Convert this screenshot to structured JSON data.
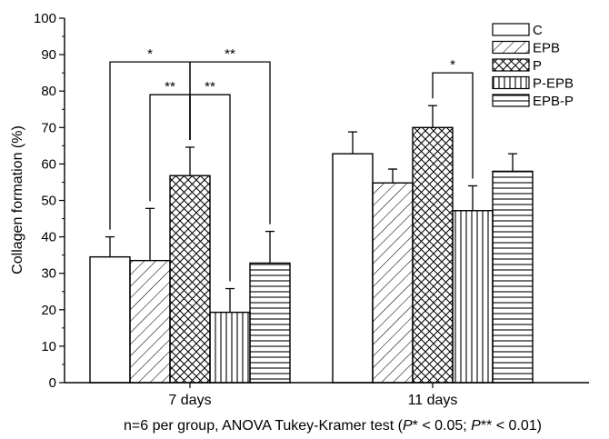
{
  "chart_data": {
    "type": "bar",
    "categories": [
      "7 days",
      "11 days"
    ],
    "series": [
      {
        "name": "C",
        "pattern": "none",
        "values": [
          34.5,
          62.8
        ],
        "errors": [
          5.5,
          6.0
        ]
      },
      {
        "name": "EPB",
        "pattern": "diagonal",
        "values": [
          33.5,
          54.8
        ],
        "errors": [
          14.3,
          3.8
        ]
      },
      {
        "name": "P",
        "pattern": "crosshatch",
        "values": [
          56.8,
          70.0
        ],
        "errors": [
          7.8,
          6.0
        ]
      },
      {
        "name": "P-EPB",
        "pattern": "vertical",
        "values": [
          19.3,
          47.2
        ],
        "errors": [
          6.5,
          6.8
        ]
      },
      {
        "name": "EPB-P",
        "pattern": "horizontal",
        "values": [
          32.8,
          58.0
        ],
        "errors": [
          8.7,
          4.8
        ]
      }
    ],
    "ylabel": "Collagen formation (%)",
    "xlabel": "",
    "ylim": [
      0,
      100
    ],
    "yticks": [
      0,
      10,
      20,
      30,
      40,
      50,
      60,
      70,
      80,
      90,
      100
    ],
    "legend_position": "top-right",
    "footnote": {
      "prefix": "n=6 per group, ANOVA Tukey-Kramer test (",
      "p1": "P",
      "mid": "* < 0.05; ",
      "p2": "P",
      "suffix": "** < 0.01)"
    },
    "significance": [
      {
        "group": 0,
        "from": 0,
        "to": 2,
        "label": "*",
        "level": 88
      },
      {
        "group": 0,
        "from": 2,
        "to": 4,
        "label": "**",
        "level": 88
      },
      {
        "group": 0,
        "from": 1,
        "to": 2,
        "label": "**",
        "level": 79
      },
      {
        "group": 0,
        "from": 2,
        "to": 3,
        "label": "**",
        "level": 79
      },
      {
        "group": 1,
        "from": 2,
        "to": 3,
        "label": "*",
        "level": 85
      }
    ]
  }
}
